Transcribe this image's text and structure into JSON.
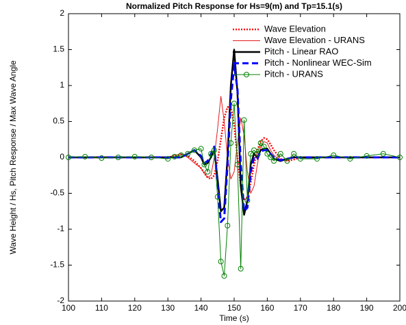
{
  "chart_data": {
    "type": "line",
    "title": "Normalized Pitch Response for Hs=9(m) and Tp=15.1(s)",
    "x_label": "Time (s)",
    "y_label": "Wave Height / Hs,  Pitch Response / Max Wave Angle",
    "x": [
      100,
      105,
      110,
      115,
      120,
      125,
      130,
      132,
      134,
      136,
      138,
      140,
      141,
      142,
      143,
      144,
      145,
      146,
      147,
      148,
      149,
      150,
      151,
      152,
      153,
      154,
      155,
      156,
      157,
      158,
      159,
      160,
      161,
      162,
      164,
      166,
      168,
      170,
      175,
      180,
      185,
      190,
      195,
      200
    ],
    "series": [
      {
        "name": "Wave Elevation",
        "color": "#ff0000",
        "linestyle": "dotted",
        "values": [
          0,
          0,
          0,
          0,
          0,
          0,
          0,
          0.02,
          0.04,
          0.02,
          -0.05,
          -0.15,
          -0.22,
          -0.28,
          -0.3,
          -0.25,
          -0.05,
          0.25,
          0.55,
          0.7,
          0.7,
          0.45,
          0,
          -0.4,
          -0.6,
          -0.55,
          -0.35,
          -0.1,
          0.1,
          0.22,
          0.27,
          0.25,
          0.18,
          0.1,
          -0.02,
          -0.05,
          -0.03,
          0,
          0,
          0,
          0,
          0,
          0,
          0
        ]
      },
      {
        "name": "Wave Elevation - URANS",
        "color": "#e31a1c",
        "linestyle": "thin",
        "values": [
          0,
          0,
          0,
          0,
          0,
          0,
          0,
          0.03,
          0.05,
          0,
          -0.08,
          -0.15,
          -0.22,
          -0.28,
          -0.25,
          0,
          0.4,
          0.85,
          0.5,
          0,
          -0.3,
          -0.2,
          0.2,
          0.55,
          0.3,
          -0.2,
          -0.5,
          -0.4,
          -0.1,
          0.15,
          0.22,
          0.2,
          0.1,
          0.03,
          -0.05,
          -0.03,
          0,
          0,
          0,
          0,
          0,
          0,
          0,
          0
        ]
      },
      {
        "name": "Pitch - Linear RAO",
        "color": "#000000",
        "linestyle": "thick",
        "values": [
          0,
          0,
          0,
          0,
          0,
          0,
          0,
          0,
          0,
          0.05,
          0.1,
          0,
          -0.1,
          -0.08,
          0,
          0.1,
          -0.3,
          -0.75,
          -0.7,
          0,
          1,
          1.5,
          0.9,
          -0.4,
          -0.8,
          -0.6,
          -0.1,
          0.05,
          0,
          0.1,
          0.12,
          0.12,
          0.05,
          -0.02,
          -0.05,
          -0.02,
          0,
          0,
          0,
          0,
          0,
          0,
          0,
          0
        ]
      },
      {
        "name": "Pitch - Nonlinear WEC-Sim",
        "color": "#0000ff",
        "linestyle": "dashed",
        "values": [
          0,
          0,
          0,
          0,
          0,
          0,
          0,
          0,
          0,
          0.05,
          0.1,
          0.02,
          -0.08,
          -0.05,
          0.05,
          0.15,
          -0.4,
          -0.9,
          -0.85,
          -0.1,
          0.8,
          1.28,
          0.95,
          -0.1,
          -0.75,
          -0.7,
          -0.2,
          0,
          -0.02,
          0.08,
          0.1,
          0.1,
          0.05,
          0,
          -0.04,
          -0.02,
          0,
          0,
          0,
          0,
          0,
          0,
          0,
          0
        ]
      },
      {
        "name": "Pitch - URANS",
        "color": "#008000",
        "linestyle": "thin",
        "marker": "circle",
        "values": [
          0,
          0.01,
          -0.01,
          0,
          0.01,
          0,
          -0.02,
          0.01,
          0.03,
          0.05,
          0.1,
          0.12,
          -0.1,
          -0.2,
          0.05,
          0.1,
          -0.55,
          -1.45,
          -1.65,
          -0.95,
          0.2,
          0.75,
          -0.1,
          -1.55,
          0.52,
          -0.6,
          0.05,
          0.1,
          0.05,
          0.2,
          0.15,
          0.05,
          0,
          -0.05,
          0.05,
          -0.05,
          0.05,
          -0.02,
          -0.02,
          0.03,
          -0.02,
          0.02,
          0.05,
          0
        ]
      }
    ],
    "xlim": [
      100,
      200
    ],
    "xticks": [
      100,
      110,
      120,
      130,
      140,
      150,
      160,
      170,
      180,
      190,
      200
    ],
    "ylim": [
      -2,
      2
    ],
    "yticks": [
      -2,
      -1.5,
      -1,
      -0.5,
      0,
      0.5,
      1,
      1.5,
      2
    ],
    "grid": false,
    "legend": "upper right"
  }
}
